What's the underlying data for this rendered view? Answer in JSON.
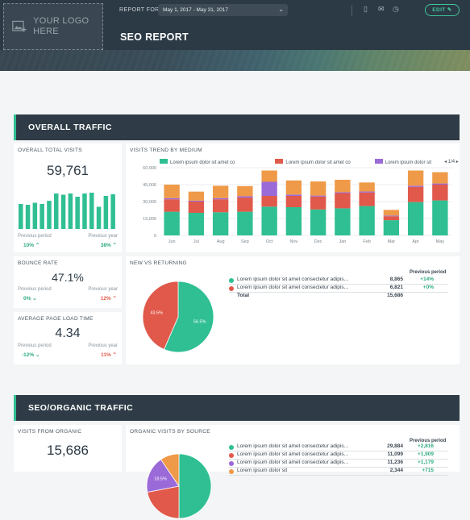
{
  "header": {
    "logo_text": "YOUR LOGO HERE",
    "report_for_label": "REPORT FOR",
    "date_range": "May 1, 2017 - May 31, 2017",
    "title": "SEO REPORT",
    "edit_label": "EDIT",
    "icons": [
      "pdf-icon",
      "email-icon",
      "clock-icon",
      "pencil-icon"
    ]
  },
  "sections": {
    "overall": "OVERALL TRAFFIC",
    "seo": "SEO/ORGANIC TRAFFIC"
  },
  "total_visits": {
    "label": "OVERALL TOTAL VISITS",
    "value": "59,761",
    "prev_period_label": "Previous period",
    "prev_year_label": "Previous year",
    "prev_period": "10%",
    "prev_year": "38%",
    "spark": [
      0.62,
      0.6,
      0.65,
      0.62,
      0.7,
      0.88,
      0.85,
      0.88,
      0.8,
      0.88,
      0.9,
      0.55,
      0.82,
      0.86
    ]
  },
  "bounce": {
    "label": "BOUNCE RATE",
    "value": "47.1%",
    "prev_period_label": "Previous period",
    "prev_year_label": "Previous year",
    "prev_period": "0%",
    "prev_year": "12%"
  },
  "load_time": {
    "label": "AVERAGE PAGE LOAD TIME",
    "value": "4.34",
    "prev_period_label": "Previous period",
    "prev_year_label": "Previous year",
    "prev_period": "-12%",
    "prev_year": "11%"
  },
  "trend": {
    "label": "VISITS TREND BY MEDIUM",
    "legend": [
      "Lorem ipsum dolor sit amet co",
      "Lorem ipsum dolor sit amet co",
      "Lorem ipsum dolor sit"
    ],
    "page": "1/4",
    "colors": {
      "teal": "#2fbf93",
      "red": "#e0594a",
      "orange": "#ef9a48",
      "purple": "#9b6ad9"
    }
  },
  "chart_data": [
    {
      "type": "bar",
      "title": "VISITS TREND BY MEDIUM",
      "categories": [
        "Jun",
        "Jul",
        "Aug",
        "Sep",
        "Oct",
        "Nov",
        "Dec",
        "Jan",
        "Feb",
        "Mar",
        "Apr",
        "May"
      ],
      "series": [
        {
          "name": "Lorem ipsum dolor sit amet co",
          "values": [
            21000,
            20000,
            20500,
            21000,
            25500,
            25000,
            23000,
            24000,
            26000,
            13500,
            29500,
            31000
          ]
        },
        {
          "name": "Lorem ipsum dolor sit amet co",
          "values": [
            11000,
            10000,
            11500,
            12500,
            9500,
            10000,
            11500,
            13500,
            12000,
            3500,
            13500,
            14000
          ]
        },
        {
          "name": "Lorem ipsum dolor sit",
          "values": [
            1000,
            800,
            1000,
            1200,
            12500,
            1200,
            800,
            800,
            900,
            600,
            1000,
            1000
          ]
        },
        {
          "name": "",
          "values": [
            12000,
            8000,
            11000,
            9000,
            10000,
            12500,
            12500,
            11000,
            8000,
            5000,
            13500,
            10000
          ]
        }
      ],
      "ylim": [
        0,
        60000
      ],
      "yticks": [
        "0",
        "15,000",
        "30,000",
        "45,000",
        "60,000"
      ]
    },
    {
      "type": "pie",
      "title": "NEW VS RETURNING",
      "labels": [
        "Lorem ipsum dolor sit amet consectetur adipis...",
        "Lorem ipsum dolor sit amet consectetur adipis..."
      ],
      "values": [
        56.5,
        43.5
      ],
      "colors": [
        "#2fbf93",
        "#e0594a"
      ]
    }
  ],
  "nvr": {
    "label": "NEW VS RETURNING",
    "prev_header": "Previous period",
    "rows": [
      {
        "name": "Lorem ipsum dolor sit amet consectetur adipis...",
        "value": "8,865",
        "change": "+14%",
        "color": "#2fbf93"
      },
      {
        "name": "Lorem ipsum dolor sit amet consectetur adipis...",
        "value": "6,821",
        "change": "+0%",
        "color": "#e0594a"
      }
    ],
    "total_label": "Total",
    "total": "15,686",
    "slice_labels": [
      "56.5%",
      "43.5%"
    ]
  },
  "organic": {
    "label": "VISITS FROM ORGANIC",
    "value": "15,686"
  },
  "sources": {
    "label": "ORGANIC VISITS BY SOURCE",
    "prev_header": "Previous period",
    "rows": [
      {
        "name": "Lorem ipsum dolor sit amet consectetur adipis...",
        "value": "29,884",
        "change": "+2,816",
        "color": "#2fbf93"
      },
      {
        "name": "Lorem ipsum dolor sit amet consectetur adipis...",
        "value": "11,099",
        "change": "+1,909",
        "color": "#e0594a"
      },
      {
        "name": "Lorem ipsum dolor sit amet consectetur adipis...",
        "value": "11,236",
        "change": "+1,179",
        "color": "#9b6ad9"
      },
      {
        "name": "Lorem ipsum dolor sit",
        "value": "2,344",
        "change": "+715",
        "color": "#ef9a48"
      }
    ],
    "slice_label": "18.5%"
  }
}
